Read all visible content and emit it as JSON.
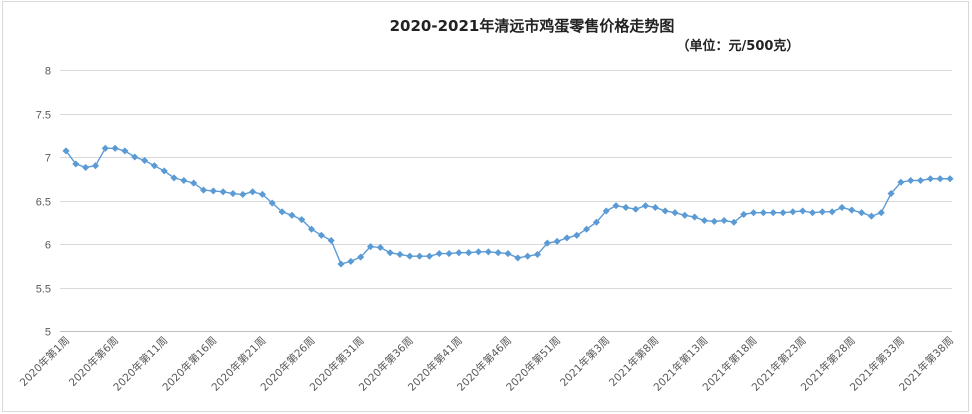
{
  "chart_data": {
    "type": "line",
    "title": "2020-2021年清远市鸡蛋零售价格走势图",
    "subtitle": "（单位：元/500克）",
    "xlabel": "",
    "ylabel": "",
    "ylim": [
      5,
      8
    ],
    "yticks": [
      5,
      5.5,
      6,
      6.5,
      7,
      7.5,
      8
    ],
    "ytick_labels": [
      "5",
      "5.5",
      "6",
      "6.5",
      "7",
      "7.5",
      "8"
    ],
    "grid": true,
    "legend": "none",
    "series_color": "#5b9bd5",
    "categories": [
      "2020年第1周",
      "2020年第2周",
      "2020年第3周",
      "2020年第4周",
      "2020年第5周",
      "2020年第6周",
      "2020年第7周",
      "2020年第8周",
      "2020年第9周",
      "2020年第10周",
      "2020年第11周",
      "2020年第12周",
      "2020年第13周",
      "2020年第14周",
      "2020年第15周",
      "2020年第16周",
      "2020年第17周",
      "2020年第18周",
      "2020年第19周",
      "2020年第20周",
      "2020年第21周",
      "2020年第22周",
      "2020年第23周",
      "2020年第24周",
      "2020年第25周",
      "2020年第26周",
      "2020年第27周",
      "2020年第28周",
      "2020年第29周",
      "2020年第30周",
      "2020年第31周",
      "2020年第32周",
      "2020年第33周",
      "2020年第34周",
      "2020年第35周",
      "2020年第36周",
      "2020年第37周",
      "2020年第38周",
      "2020年第39周",
      "2020年第40周",
      "2020年第41周",
      "2020年第42周",
      "2020年第43周",
      "2020年第44周",
      "2020年第45周",
      "2020年第46周",
      "2020年第47周",
      "2020年第48周",
      "2020年第49周",
      "2020年第50周",
      "2020年第51周",
      "2020年第52周",
      "2020年第53周",
      "2021年第1周",
      "2021年第2周",
      "2021年第3周",
      "2021年第4周",
      "2021年第5周",
      "2021年第6周",
      "2021年第7周",
      "2021年第8周",
      "2021年第9周",
      "2021年第10周",
      "2021年第11周",
      "2021年第12周",
      "2021年第13周",
      "2021年第14周",
      "2021年第15周",
      "2021年第16周",
      "2021年第17周",
      "2021年第18周",
      "2021年第19周",
      "2021年第20周",
      "2021年第21周",
      "2021年第22周",
      "2021年第23周",
      "2021年第24周",
      "2021年第25周",
      "2021年第26周",
      "2021年第27周",
      "2021年第28周",
      "2021年第29周",
      "2021年第30周",
      "2021年第31周",
      "2021年第32周",
      "2021年第33周",
      "2021年第34周",
      "2021年第35周",
      "2021年第36周",
      "2021年第37周",
      "2021年第38周"
    ],
    "labeled_categories": [
      "2020年第1周",
      "2020年第6周",
      "2020年第11周",
      "2020年第16周",
      "2020年第21周",
      "2020年第26周",
      "2020年第31周",
      "2020年第36周",
      "2020年第41周",
      "2020年第46周",
      "2020年第51周",
      "2021年第3周",
      "2021年第8周",
      "2021年第13周",
      "2021年第18周",
      "2021年第23周",
      "2021年第28周",
      "2021年第33周",
      "2021年第38周"
    ],
    "series": [
      {
        "values": [
          7.07,
          6.92,
          6.88,
          6.9,
          7.1,
          7.1,
          7.07,
          7.0,
          6.96,
          6.9,
          6.84,
          6.76,
          6.73,
          6.7,
          6.62,
          6.61,
          6.6,
          6.58,
          6.57,
          6.6,
          6.57,
          6.47,
          6.37,
          6.33,
          6.28,
          6.17,
          6.1,
          6.04,
          5.77,
          5.8,
          5.85,
          5.97,
          5.96,
          5.9,
          5.88,
          5.86,
          5.86,
          5.86,
          5.89,
          5.89,
          5.9,
          5.9,
          5.91,
          5.91,
          5.9,
          5.89,
          5.84,
          5.86,
          5.88,
          6.01,
          6.03,
          6.07,
          6.1,
          6.17,
          6.25,
          6.38,
          6.44,
          6.42,
          6.4,
          6.44,
          6.42,
          6.38,
          6.36,
          6.33,
          6.31,
          6.27,
          6.26,
          6.27,
          6.25,
          6.34,
          6.36,
          6.36,
          6.36,
          6.36,
          6.37,
          6.38,
          6.36,
          6.37,
          6.37,
          6.42,
          6.39,
          6.36,
          6.32,
          6.36,
          6.58,
          6.71,
          6.73,
          6.73,
          6.75,
          6.75,
          6.75
        ]
      }
    ]
  }
}
